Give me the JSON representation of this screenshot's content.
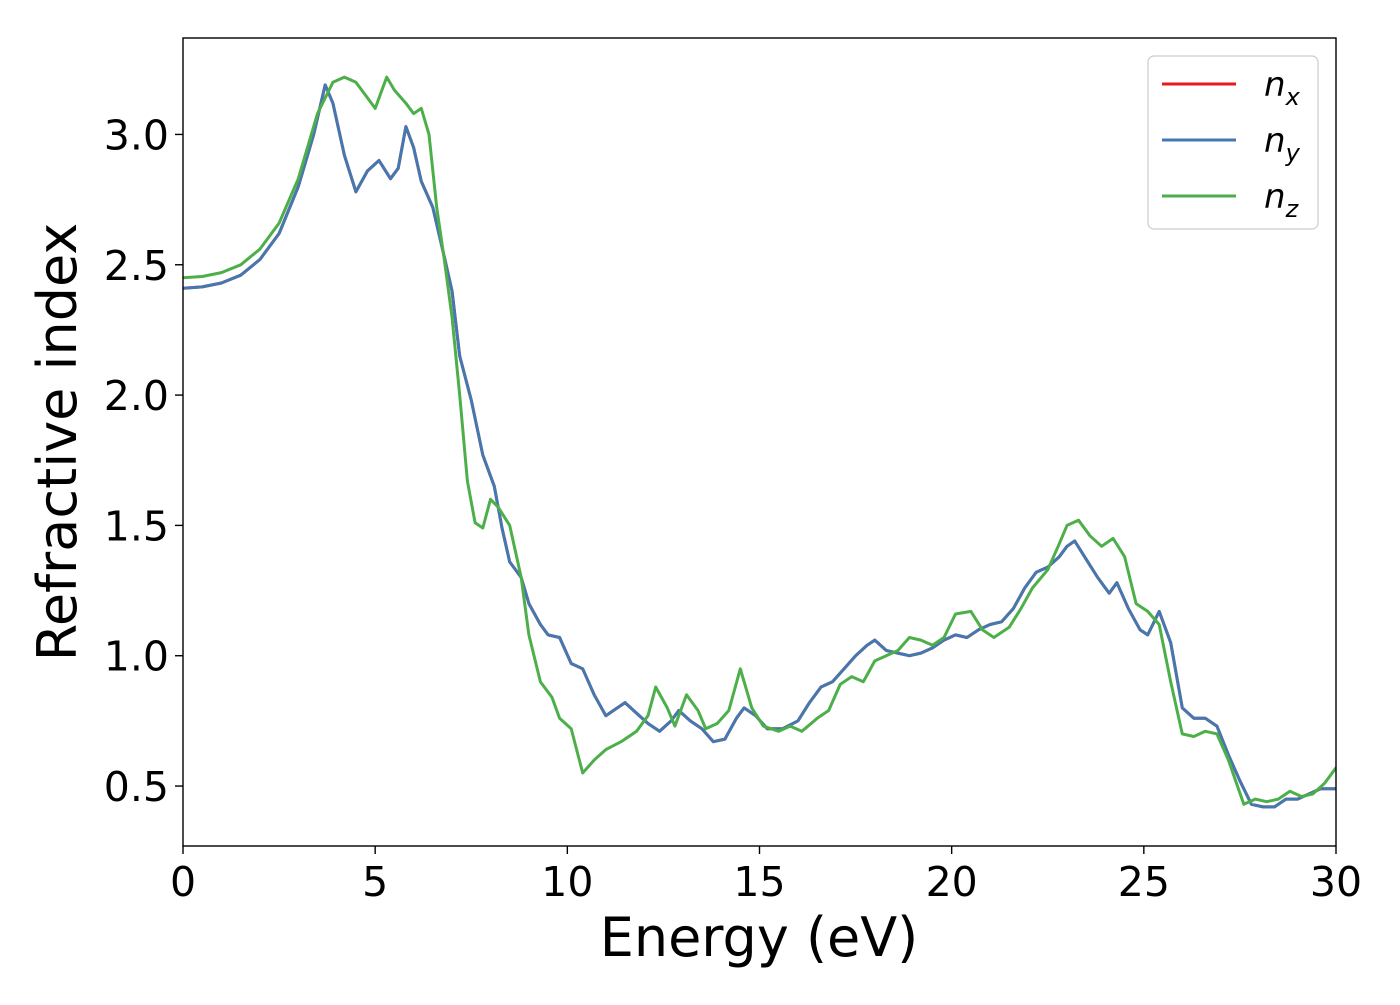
{
  "chart_data": {
    "type": "line",
    "title": "",
    "xlabel": "Energy (eV)",
    "ylabel": "Refractive index",
    "xlim": [
      0,
      30
    ],
    "ylim": [
      0.27,
      3.37
    ],
    "x_ticks": [
      "0",
      "5",
      "10",
      "15",
      "20",
      "25",
      "30"
    ],
    "y_ticks": [
      "0.5",
      "1.0",
      "1.5",
      "2.0",
      "2.5",
      "3.0"
    ],
    "grid": false,
    "legend_position": "top-right",
    "series": [
      {
        "name": "n_x",
        "legend_base": "n",
        "legend_sub": "x",
        "color": "#e41a1c",
        "points": [
          [
            0,
            2.41
          ],
          [
            0.5,
            2.415
          ],
          [
            1,
            2.43
          ],
          [
            1.5,
            2.46
          ],
          [
            2,
            2.52
          ],
          [
            2.5,
            2.62
          ],
          [
            3,
            2.8
          ],
          [
            3.4,
            3.0
          ],
          [
            3.7,
            3.19
          ],
          [
            3.9,
            3.12
          ],
          [
            4.2,
            2.92
          ],
          [
            4.5,
            2.78
          ],
          [
            4.8,
            2.86
          ],
          [
            5.1,
            2.9
          ],
          [
            5.4,
            2.83
          ],
          [
            5.6,
            2.87
          ],
          [
            5.8,
            3.03
          ],
          [
            6.0,
            2.95
          ],
          [
            6.2,
            2.82
          ],
          [
            6.5,
            2.72
          ],
          [
            6.8,
            2.53
          ],
          [
            7.0,
            2.4
          ],
          [
            7.2,
            2.15
          ],
          [
            7.5,
            1.98
          ],
          [
            7.8,
            1.77
          ],
          [
            8.1,
            1.65
          ],
          [
            8.3,
            1.49
          ],
          [
            8.5,
            1.36
          ],
          [
            8.8,
            1.3
          ],
          [
            9.0,
            1.2
          ],
          [
            9.3,
            1.12
          ],
          [
            9.5,
            1.08
          ],
          [
            9.8,
            1.07
          ],
          [
            10.1,
            0.97
          ],
          [
            10.4,
            0.95
          ],
          [
            10.7,
            0.85
          ],
          [
            11.0,
            0.77
          ],
          [
            11.2,
            0.79
          ],
          [
            11.5,
            0.82
          ],
          [
            11.8,
            0.78
          ],
          [
            12.1,
            0.74
          ],
          [
            12.4,
            0.71
          ],
          [
            12.7,
            0.75
          ],
          [
            12.9,
            0.79
          ],
          [
            13.2,
            0.75
          ],
          [
            13.5,
            0.72
          ],
          [
            13.8,
            0.67
          ],
          [
            14.1,
            0.68
          ],
          [
            14.4,
            0.76
          ],
          [
            14.6,
            0.8
          ],
          [
            14.9,
            0.77
          ],
          [
            15.2,
            0.72
          ],
          [
            15.6,
            0.72
          ],
          [
            16.0,
            0.75
          ],
          [
            16.3,
            0.82
          ],
          [
            16.6,
            0.88
          ],
          [
            16.9,
            0.9
          ],
          [
            17.2,
            0.95
          ],
          [
            17.5,
            1.0
          ],
          [
            17.8,
            1.04
          ],
          [
            18.0,
            1.06
          ],
          [
            18.3,
            1.02
          ],
          [
            18.6,
            1.01
          ],
          [
            18.9,
            1.0
          ],
          [
            19.2,
            1.01
          ],
          [
            19.5,
            1.03
          ],
          [
            19.8,
            1.06
          ],
          [
            20.1,
            1.08
          ],
          [
            20.4,
            1.07
          ],
          [
            20.7,
            1.1
          ],
          [
            21.0,
            1.12
          ],
          [
            21.3,
            1.13
          ],
          [
            21.6,
            1.18
          ],
          [
            21.9,
            1.26
          ],
          [
            22.2,
            1.32
          ],
          [
            22.5,
            1.34
          ],
          [
            22.8,
            1.38
          ],
          [
            23.0,
            1.42
          ],
          [
            23.2,
            1.44
          ],
          [
            23.5,
            1.37
          ],
          [
            23.8,
            1.3
          ],
          [
            24.1,
            1.24
          ],
          [
            24.3,
            1.28
          ],
          [
            24.6,
            1.18
          ],
          [
            24.9,
            1.1
          ],
          [
            25.1,
            1.08
          ],
          [
            25.4,
            1.17
          ],
          [
            25.7,
            1.05
          ],
          [
            26.0,
            0.8
          ],
          [
            26.3,
            0.76
          ],
          [
            26.6,
            0.76
          ],
          [
            26.9,
            0.73
          ],
          [
            27.2,
            0.62
          ],
          [
            27.5,
            0.52
          ],
          [
            27.8,
            0.43
          ],
          [
            28.1,
            0.42
          ],
          [
            28.4,
            0.42
          ],
          [
            28.7,
            0.45
          ],
          [
            29.0,
            0.45
          ],
          [
            29.3,
            0.47
          ],
          [
            29.6,
            0.49
          ],
          [
            30.0,
            0.49
          ]
        ]
      },
      {
        "name": "n_y",
        "legend_base": "n",
        "legend_sub": "y",
        "color": "#4478b0",
        "points": [
          [
            0,
            2.41
          ],
          [
            0.5,
            2.415
          ],
          [
            1,
            2.43
          ],
          [
            1.5,
            2.46
          ],
          [
            2,
            2.52
          ],
          [
            2.5,
            2.62
          ],
          [
            3,
            2.8
          ],
          [
            3.4,
            3.0
          ],
          [
            3.7,
            3.19
          ],
          [
            3.9,
            3.12
          ],
          [
            4.2,
            2.92
          ],
          [
            4.5,
            2.78
          ],
          [
            4.8,
            2.86
          ],
          [
            5.1,
            2.9
          ],
          [
            5.4,
            2.83
          ],
          [
            5.6,
            2.87
          ],
          [
            5.8,
            3.03
          ],
          [
            6.0,
            2.95
          ],
          [
            6.2,
            2.82
          ],
          [
            6.5,
            2.72
          ],
          [
            6.8,
            2.53
          ],
          [
            7.0,
            2.4
          ],
          [
            7.2,
            2.15
          ],
          [
            7.5,
            1.98
          ],
          [
            7.8,
            1.77
          ],
          [
            8.1,
            1.65
          ],
          [
            8.3,
            1.49
          ],
          [
            8.5,
            1.36
          ],
          [
            8.8,
            1.3
          ],
          [
            9.0,
            1.2
          ],
          [
            9.3,
            1.12
          ],
          [
            9.5,
            1.08
          ],
          [
            9.8,
            1.07
          ],
          [
            10.1,
            0.97
          ],
          [
            10.4,
            0.95
          ],
          [
            10.7,
            0.85
          ],
          [
            11.0,
            0.77
          ],
          [
            11.2,
            0.79
          ],
          [
            11.5,
            0.82
          ],
          [
            11.8,
            0.78
          ],
          [
            12.1,
            0.74
          ],
          [
            12.4,
            0.71
          ],
          [
            12.7,
            0.75
          ],
          [
            12.9,
            0.79
          ],
          [
            13.2,
            0.75
          ],
          [
            13.5,
            0.72
          ],
          [
            13.8,
            0.67
          ],
          [
            14.1,
            0.68
          ],
          [
            14.4,
            0.76
          ],
          [
            14.6,
            0.8
          ],
          [
            14.9,
            0.77
          ],
          [
            15.2,
            0.72
          ],
          [
            15.6,
            0.72
          ],
          [
            16.0,
            0.75
          ],
          [
            16.3,
            0.82
          ],
          [
            16.6,
            0.88
          ],
          [
            16.9,
            0.9
          ],
          [
            17.2,
            0.95
          ],
          [
            17.5,
            1.0
          ],
          [
            17.8,
            1.04
          ],
          [
            18.0,
            1.06
          ],
          [
            18.3,
            1.02
          ],
          [
            18.6,
            1.01
          ],
          [
            18.9,
            1.0
          ],
          [
            19.2,
            1.01
          ],
          [
            19.5,
            1.03
          ],
          [
            19.8,
            1.06
          ],
          [
            20.1,
            1.08
          ],
          [
            20.4,
            1.07
          ],
          [
            20.7,
            1.1
          ],
          [
            21.0,
            1.12
          ],
          [
            21.3,
            1.13
          ],
          [
            21.6,
            1.18
          ],
          [
            21.9,
            1.26
          ],
          [
            22.2,
            1.32
          ],
          [
            22.5,
            1.34
          ],
          [
            22.8,
            1.38
          ],
          [
            23.0,
            1.42
          ],
          [
            23.2,
            1.44
          ],
          [
            23.5,
            1.37
          ],
          [
            23.8,
            1.3
          ],
          [
            24.1,
            1.24
          ],
          [
            24.3,
            1.28
          ],
          [
            24.6,
            1.18
          ],
          [
            24.9,
            1.1
          ],
          [
            25.1,
            1.08
          ],
          [
            25.4,
            1.17
          ],
          [
            25.7,
            1.05
          ],
          [
            26.0,
            0.8
          ],
          [
            26.3,
            0.76
          ],
          [
            26.6,
            0.76
          ],
          [
            26.9,
            0.73
          ],
          [
            27.2,
            0.62
          ],
          [
            27.5,
            0.52
          ],
          [
            27.8,
            0.43
          ],
          [
            28.1,
            0.42
          ],
          [
            28.4,
            0.42
          ],
          [
            28.7,
            0.45
          ],
          [
            29.0,
            0.45
          ],
          [
            29.3,
            0.47
          ],
          [
            29.6,
            0.49
          ],
          [
            30.0,
            0.49
          ]
        ]
      },
      {
        "name": "n_z",
        "legend_base": "n",
        "legend_sub": "z",
        "color": "#4daf4a",
        "points": [
          [
            0,
            2.45
          ],
          [
            0.5,
            2.455
          ],
          [
            1,
            2.47
          ],
          [
            1.5,
            2.5
          ],
          [
            2,
            2.56
          ],
          [
            2.5,
            2.66
          ],
          [
            3,
            2.83
          ],
          [
            3.5,
            3.08
          ],
          [
            3.9,
            3.2
          ],
          [
            4.2,
            3.22
          ],
          [
            4.5,
            3.2
          ],
          [
            4.8,
            3.14
          ],
          [
            5.0,
            3.1
          ],
          [
            5.3,
            3.22
          ],
          [
            5.5,
            3.17
          ],
          [
            5.8,
            3.12
          ],
          [
            6.0,
            3.08
          ],
          [
            6.2,
            3.1
          ],
          [
            6.4,
            3.0
          ],
          [
            6.6,
            2.72
          ],
          [
            6.8,
            2.52
          ],
          [
            7.0,
            2.3
          ],
          [
            7.2,
            2.0
          ],
          [
            7.4,
            1.67
          ],
          [
            7.6,
            1.51
          ],
          [
            7.8,
            1.49
          ],
          [
            8.0,
            1.6
          ],
          [
            8.2,
            1.57
          ],
          [
            8.5,
            1.5
          ],
          [
            8.8,
            1.3
          ],
          [
            9.0,
            1.08
          ],
          [
            9.3,
            0.9
          ],
          [
            9.6,
            0.84
          ],
          [
            9.8,
            0.76
          ],
          [
            10.1,
            0.72
          ],
          [
            10.4,
            0.55
          ],
          [
            10.7,
            0.6
          ],
          [
            11.0,
            0.64
          ],
          [
            11.4,
            0.67
          ],
          [
            11.8,
            0.71
          ],
          [
            12.1,
            0.77
          ],
          [
            12.3,
            0.88
          ],
          [
            12.6,
            0.8
          ],
          [
            12.8,
            0.73
          ],
          [
            13.1,
            0.85
          ],
          [
            13.4,
            0.79
          ],
          [
            13.6,
            0.72
          ],
          [
            13.9,
            0.74
          ],
          [
            14.2,
            0.79
          ],
          [
            14.5,
            0.95
          ],
          [
            14.8,
            0.8
          ],
          [
            15.1,
            0.73
          ],
          [
            15.5,
            0.71
          ],
          [
            15.8,
            0.73
          ],
          [
            16.1,
            0.71
          ],
          [
            16.5,
            0.76
          ],
          [
            16.8,
            0.79
          ],
          [
            17.1,
            0.89
          ],
          [
            17.4,
            0.92
          ],
          [
            17.7,
            0.9
          ],
          [
            18.0,
            0.98
          ],
          [
            18.3,
            1.0
          ],
          [
            18.6,
            1.02
          ],
          [
            18.9,
            1.07
          ],
          [
            19.2,
            1.06
          ],
          [
            19.5,
            1.04
          ],
          [
            19.8,
            1.07
          ],
          [
            20.1,
            1.16
          ],
          [
            20.5,
            1.17
          ],
          [
            20.8,
            1.1
          ],
          [
            21.1,
            1.07
          ],
          [
            21.5,
            1.11
          ],
          [
            21.8,
            1.18
          ],
          [
            22.1,
            1.26
          ],
          [
            22.5,
            1.33
          ],
          [
            22.8,
            1.43
          ],
          [
            23.0,
            1.5
          ],
          [
            23.3,
            1.52
          ],
          [
            23.6,
            1.46
          ],
          [
            23.9,
            1.42
          ],
          [
            24.2,
            1.45
          ],
          [
            24.5,
            1.38
          ],
          [
            24.8,
            1.2
          ],
          [
            25.1,
            1.17
          ],
          [
            25.4,
            1.12
          ],
          [
            25.7,
            0.9
          ],
          [
            26.0,
            0.7
          ],
          [
            26.3,
            0.69
          ],
          [
            26.6,
            0.71
          ],
          [
            26.9,
            0.7
          ],
          [
            27.2,
            0.6
          ],
          [
            27.6,
            0.43
          ],
          [
            27.9,
            0.45
          ],
          [
            28.2,
            0.44
          ],
          [
            28.5,
            0.45
          ],
          [
            28.8,
            0.48
          ],
          [
            29.1,
            0.46
          ],
          [
            29.4,
            0.47
          ],
          [
            29.7,
            0.51
          ],
          [
            30.0,
            0.57
          ]
        ]
      }
    ]
  }
}
